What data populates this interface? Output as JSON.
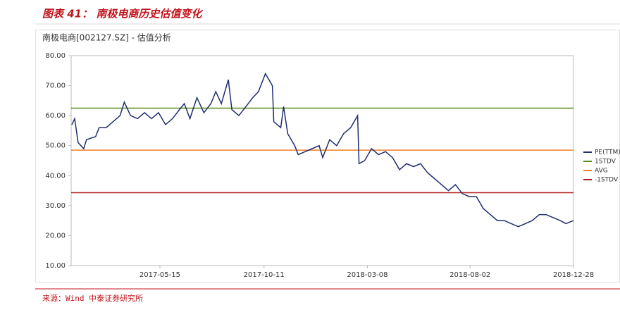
{
  "chart_data": {
    "type": "line",
    "title": "图表 41： 南极电商历史估值变化",
    "subtitle": "南极电商[002127.SZ] - 估值分析",
    "source": "来源：Wind 中泰证券研究所",
    "x": [
      "2017-01-09",
      "2017-01-13",
      "2017-01-18",
      "2017-01-26",
      "2017-01-30",
      "2017-02-12",
      "2017-02-17",
      "2017-02-27",
      "2017-03-09",
      "2017-03-19",
      "2017-03-25",
      "2017-04-03",
      "2017-04-13",
      "2017-04-23",
      "2017-05-03",
      "2017-05-13",
      "2017-05-23",
      "2017-06-02",
      "2017-06-12",
      "2017-06-19",
      "2017-06-27",
      "2017-07-07",
      "2017-07-17",
      "2017-07-27",
      "2017-08-03",
      "2017-08-11",
      "2017-08-21",
      "2017-08-26",
      "2017-09-05",
      "2017-09-15",
      "2017-09-25",
      "2017-10-03",
      "2017-10-13",
      "2017-10-23",
      "2017-10-25",
      "2017-11-04",
      "2017-11-08",
      "2017-11-14",
      "2017-11-24",
      "2017-11-29",
      "2017-12-09",
      "2017-12-19",
      "2017-12-29",
      "2018-01-03",
      "2018-01-13",
      "2018-01-23",
      "2018-02-02",
      "2018-02-12",
      "2018-02-22",
      "2018-02-24",
      "2018-03-04",
      "2018-03-14",
      "2018-03-24",
      "2018-04-03",
      "2018-04-13",
      "2018-04-23",
      "2018-05-03",
      "2018-05-13",
      "2018-05-23",
      "2018-06-02",
      "2018-06-12",
      "2018-06-22",
      "2018-07-02",
      "2018-07-12",
      "2018-07-22",
      "2018-08-01",
      "2018-08-11",
      "2018-08-21",
      "2018-08-31",
      "2018-09-10",
      "2018-09-20",
      "2018-09-30",
      "2018-10-10",
      "2018-10-20",
      "2018-10-30",
      "2018-11-09",
      "2018-11-19",
      "2018-11-29",
      "2018-12-09",
      "2018-12-17",
      "2018-12-28"
    ],
    "series": [
      {
        "name": "PE(TTM)",
        "color": "#1f2d6e",
        "values": [
          57,
          59,
          51,
          49,
          52,
          53,
          56,
          56,
          58,
          60,
          64.5,
          60,
          59,
          61,
          59,
          61,
          57,
          59,
          62,
          64,
          59,
          66,
          61,
          64,
          68,
          64,
          72,
          62,
          60,
          63,
          66,
          68,
          74,
          70,
          58,
          56,
          63,
          54,
          50,
          47,
          48,
          49,
          50,
          46,
          52,
          50,
          54,
          56,
          60,
          44,
          45,
          49,
          47,
          48,
          46,
          42,
          44,
          43,
          44,
          41,
          39,
          37,
          35,
          37,
          34,
          33,
          33,
          29,
          27,
          25,
          25,
          24,
          23,
          24,
          25,
          27,
          27,
          26,
          25,
          24,
          25
        ]
      }
    ],
    "hlines": [
      {
        "name": "1STDV",
        "color": "#5a8a1e",
        "value": 62.5
      },
      {
        "name": "AVG",
        "color": "#f07f2a",
        "value": 48.5
      },
      {
        "name": "-1STDV",
        "color": "#b0201e",
        "value": 34.3
      }
    ],
    "xlim": [
      "2017-01-08",
      "2018-12-28"
    ],
    "xticks": [
      "2017-05-15",
      "2017-10-11",
      "2018-03-08",
      "2018-08-02",
      "2018-12-28"
    ],
    "ylim": [
      10,
      80
    ],
    "yticks": [
      {
        "value": 10,
        "label": "10.00"
      },
      {
        "value": 20,
        "label": "20.00"
      },
      {
        "value": 30,
        "label": "30.00"
      },
      {
        "value": 40,
        "label": "40.00"
      },
      {
        "value": 50,
        "label": "50.00"
      },
      {
        "value": 60,
        "label": "60.00"
      },
      {
        "value": 70,
        "label": "70.00"
      },
      {
        "value": 80,
        "label": "80.00"
      }
    ]
  }
}
